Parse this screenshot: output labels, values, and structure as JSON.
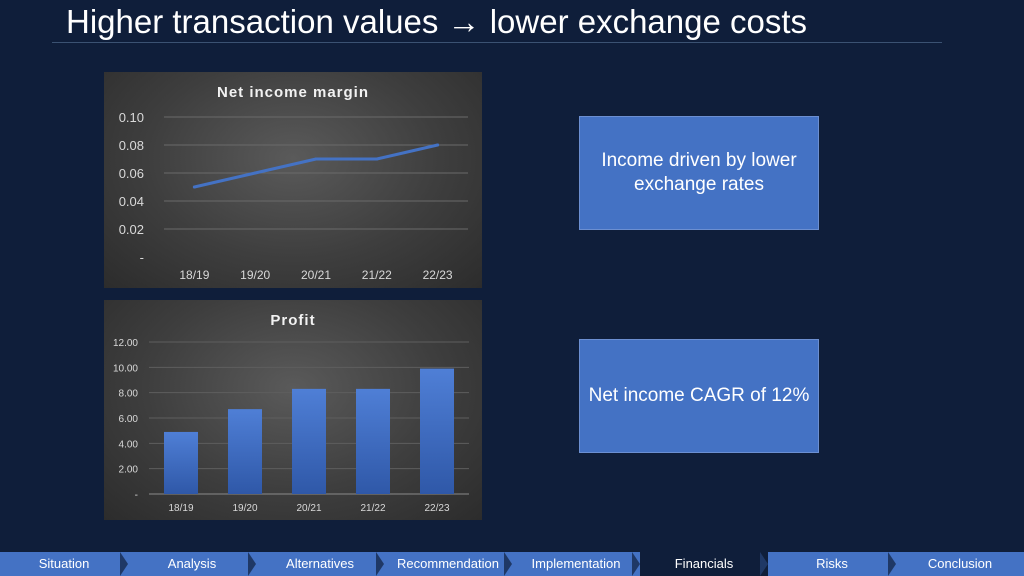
{
  "slide": {
    "title": "Higher transaction values → lower exchange costs"
  },
  "boxes": [
    {
      "text": "Income driven by lower exchange rates"
    },
    {
      "text": "Net income CAGR of 12%"
    }
  ],
  "nav": {
    "items": [
      "Situation",
      "Analysis",
      "Alternatives",
      "Recommendation",
      "Implementation",
      "Financials",
      "Risks",
      "Conclusion"
    ],
    "active_index": 5
  },
  "colors": {
    "background": "#0f1e3a",
    "accent": "#4472c4",
    "line": "#4472c4"
  },
  "chart_data": [
    {
      "type": "line",
      "title": "Net income margin",
      "categories": [
        "18/19",
        "19/20",
        "20/21",
        "21/22",
        "22/23"
      ],
      "values": [
        0.05,
        0.06,
        0.07,
        0.07,
        0.08
      ],
      "yticks": [
        "-",
        "0.02",
        "0.04",
        "0.06",
        "0.08",
        "0.10"
      ],
      "ylim": [
        0,
        0.1
      ],
      "grid": true,
      "legend": "none"
    },
    {
      "type": "bar",
      "title": "Profit",
      "categories": [
        "18/19",
        "19/20",
        "20/21",
        "21/22",
        "22/23"
      ],
      "values": [
        4.9,
        6.7,
        8.3,
        8.3,
        9.9
      ],
      "yticks": [
        "-",
        "2.00",
        "4.00",
        "6.00",
        "8.00",
        "10.00",
        "12.00"
      ],
      "ylim": [
        0,
        12
      ],
      "grid": true,
      "legend": "none"
    }
  ]
}
